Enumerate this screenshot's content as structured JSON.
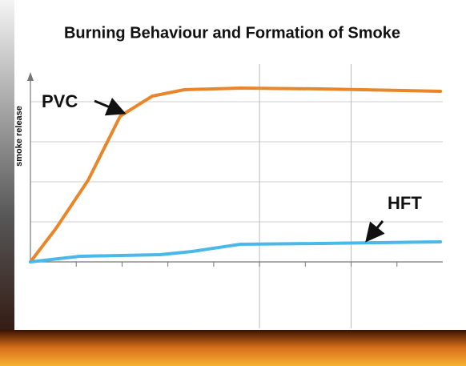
{
  "chart_data": {
    "type": "line",
    "title": "Burning Behaviour and Formation of Smoke",
    "y_label": "smoke release",
    "xlim": [
      0,
      9
    ],
    "ylim": [
      0,
      5
    ],
    "ygrid": [
      1,
      2,
      3,
      4
    ],
    "xgrid": [
      5,
      7
    ],
    "xtickmarks": [
      1,
      2,
      3,
      4,
      5,
      6,
      7,
      8
    ],
    "series": [
      {
        "name": "PVC",
        "color": "#e8862a",
        "x": [
          0,
          0.56,
          1.26,
          1.96,
          2.66,
          3.36,
          4.58,
          6.33,
          8.95
        ],
        "values": [
          0,
          0.84,
          2.04,
          3.64,
          4.14,
          4.3,
          4.34,
          4.32,
          4.26
        ]
      },
      {
        "name": "HFT",
        "color": "#4ab8e8",
        "x": [
          0,
          1.08,
          2.83,
          3.53,
          4.58,
          6.33,
          8.95
        ],
        "values": [
          0,
          0.14,
          0.18,
          0.26,
          0.44,
          0.46,
          0.5
        ]
      }
    ]
  }
}
